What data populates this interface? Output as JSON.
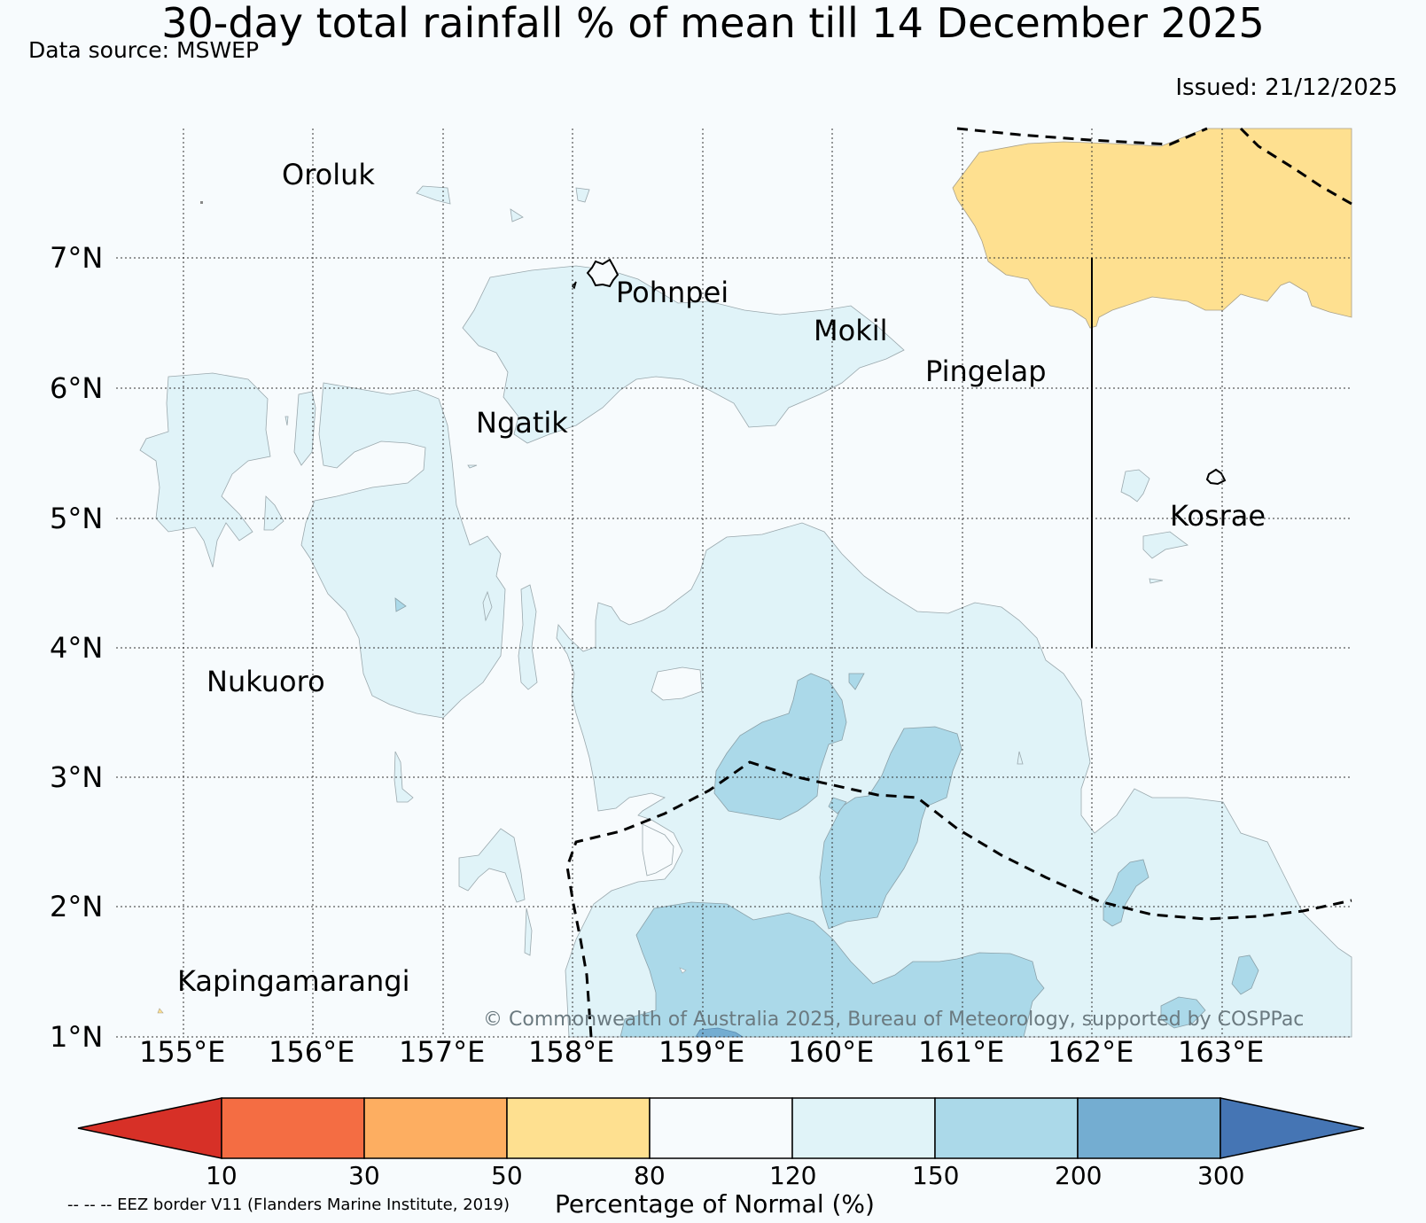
{
  "title": "30-day total rainfall % of mean till 14 December 2025",
  "data_source": "Data source: MSWEP",
  "issued": "Issued: 21/12/2025",
  "lat_labels": [
    "7°N",
    "6°N",
    "5°N",
    "4°N",
    "3°N",
    "2°N",
    "1°N"
  ],
  "lon_labels": [
    "155°E",
    "156°E",
    "157°E",
    "158°E",
    "159°E",
    "160°E",
    "161°E",
    "162°E",
    "163°E"
  ],
  "places": {
    "oroluk": "Oroluk",
    "pohnpei": "Pohnpei",
    "mokil": "Mokil",
    "pingelap": "Pingelap",
    "ngatik": "Ngatik",
    "kosrae": "Kosrae",
    "nukuoro": "Nukuoro",
    "kapingamarangi": "Kapingamarangi"
  },
  "copyright": "© Commonwealth of Australia 2025, Bureau of Meteorology, supported by COSPPac",
  "colorbar": {
    "ticks": [
      "10",
      "30",
      "50",
      "80",
      "120",
      "150",
      "200",
      "300"
    ],
    "label": "Percentage of Normal (%)",
    "colors": {
      "below_10": "#d73027",
      "10_30": "#f46d43",
      "30_50": "#fdae61",
      "50_80": "#fee090",
      "80_120": "#f7fbfd",
      "120_150": "#e0f3f8",
      "150_200": "#abd9e9",
      "200_300": "#74add1",
      "above_300": "#4575b4"
    }
  },
  "eez_note": "-- -- -- EEZ border V11 (Flanders Marine Institute, 2019)"
}
